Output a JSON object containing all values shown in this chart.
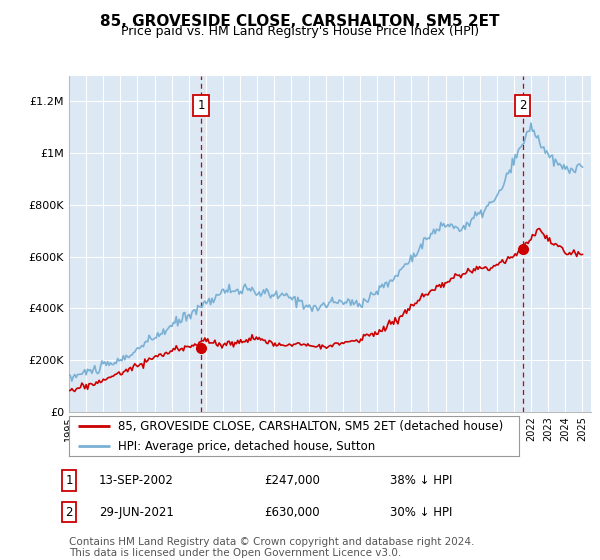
{
  "title": "85, GROVESIDE CLOSE, CARSHALTON, SM5 2ET",
  "subtitle": "Price paid vs. HM Land Registry's House Price Index (HPI)",
  "ylabel_ticks": [
    "£0",
    "£200K",
    "£400K",
    "£600K",
    "£800K",
    "£1M",
    "£1.2M"
  ],
  "ytick_values": [
    0,
    200000,
    400000,
    600000,
    800000,
    1000000,
    1200000
  ],
  "ylim": [
    0,
    1300000
  ],
  "xlim_start": 1995.0,
  "xlim_end": 2025.5,
  "sale1_date": 2002.71,
  "sale1_price": 247000,
  "sale1_label": "1",
  "sale2_date": 2021.5,
  "sale2_price": 630000,
  "sale2_label": "2",
  "legend_property": "85, GROVESIDE CLOSE, CARSHALTON, SM5 2ET (detached house)",
  "legend_hpi": "HPI: Average price, detached house, Sutton",
  "footnote": "Contains HM Land Registry data © Crown copyright and database right 2024.\nThis data is licensed under the Open Government Licence v3.0.",
  "property_color": "#cc0000",
  "hpi_color": "#7ab0d4",
  "dashed_color": "#cc0000",
  "plot_bg": "#dce9f5",
  "grid_color": "#ffffff",
  "title_fontsize": 11,
  "subtitle_fontsize": 9,
  "tick_fontsize": 8,
  "legend_fontsize": 8.5,
  "footnote_fontsize": 7.5
}
